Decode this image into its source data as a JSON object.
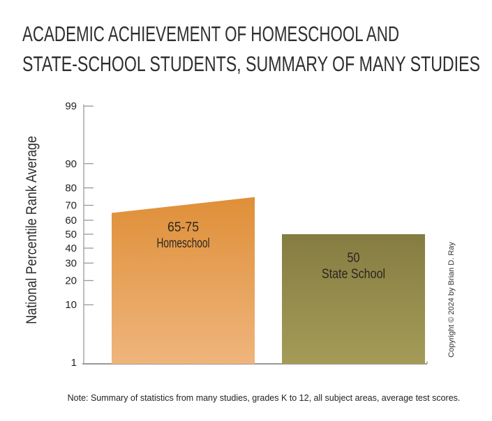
{
  "chart_data": {
    "type": "bar",
    "title": "ACADEMIC ACHIEVEMENT OF HOMESCHOOL AND STATE-SCHOOL STUDENTS, SUMMARY OF MANY STUDIES",
    "title_lines": [
      "ACADEMIC ACHIEVEMENT OF HOMESCHOOL AND",
      "STATE-SCHOOL STUDENTS, SUMMARY OF MANY STUDIES"
    ],
    "ylabel": "National Percentile Rank Average",
    "xlabel": "",
    "yscale": "normal-probability",
    "ylim": [
      1,
      99
    ],
    "yticks": [
      1,
      10,
      20,
      30,
      40,
      50,
      60,
      70,
      80,
      90,
      99
    ],
    "grid": false,
    "categories": [
      "Homeschool",
      "State School"
    ],
    "bars": [
      {
        "name": "Homeschool",
        "label_value": "65-75",
        "low": 65,
        "high": 75,
        "color_top": "#df8f38",
        "color_bottom": "#efb57c"
      },
      {
        "name": "State School",
        "label_value": "50",
        "low": 50,
        "high": 50,
        "color_top": "#857c42",
        "color_bottom": "#a59b57"
      }
    ],
    "axis_color": "#999999",
    "copyright": "Copyright © 2024  by Brian D. Ray",
    "note": "Note: Summary of statistics from many studies, grades K to 12, all subject areas, average test scores."
  }
}
